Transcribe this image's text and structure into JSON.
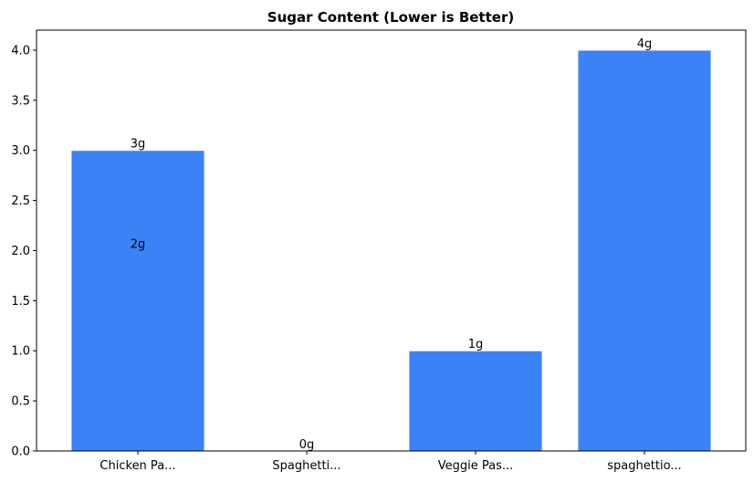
{
  "chart_data": {
    "type": "bar",
    "title": "Sugar Content (Lower is Better)",
    "xlabel": "",
    "ylabel": "",
    "ylim": [
      0,
      4.2
    ],
    "yticks": [
      "0.0",
      "0.5",
      "1.0",
      "1.5",
      "2.0",
      "2.5",
      "3.0",
      "3.5",
      "4.0"
    ],
    "categories": [
      "Chicken Pa...",
      "Spaghetti...",
      "Veggie Pas...",
      "spaghettio..."
    ],
    "bars": [
      {
        "category": "Chicken Pa...",
        "value": 2,
        "label": "2g"
      },
      {
        "category": "Chicken Pa...",
        "value": 3,
        "label": "3g"
      },
      {
        "category": "Spaghetti...",
        "value": 0,
        "label": "0g"
      },
      {
        "category": "Veggie Pas...",
        "value": 1,
        "label": "1g"
      },
      {
        "category": "spaghettio...",
        "value": 4,
        "label": "4g"
      }
    ],
    "bar_color": "#3b82f6",
    "grid": false,
    "legend": "none"
  }
}
